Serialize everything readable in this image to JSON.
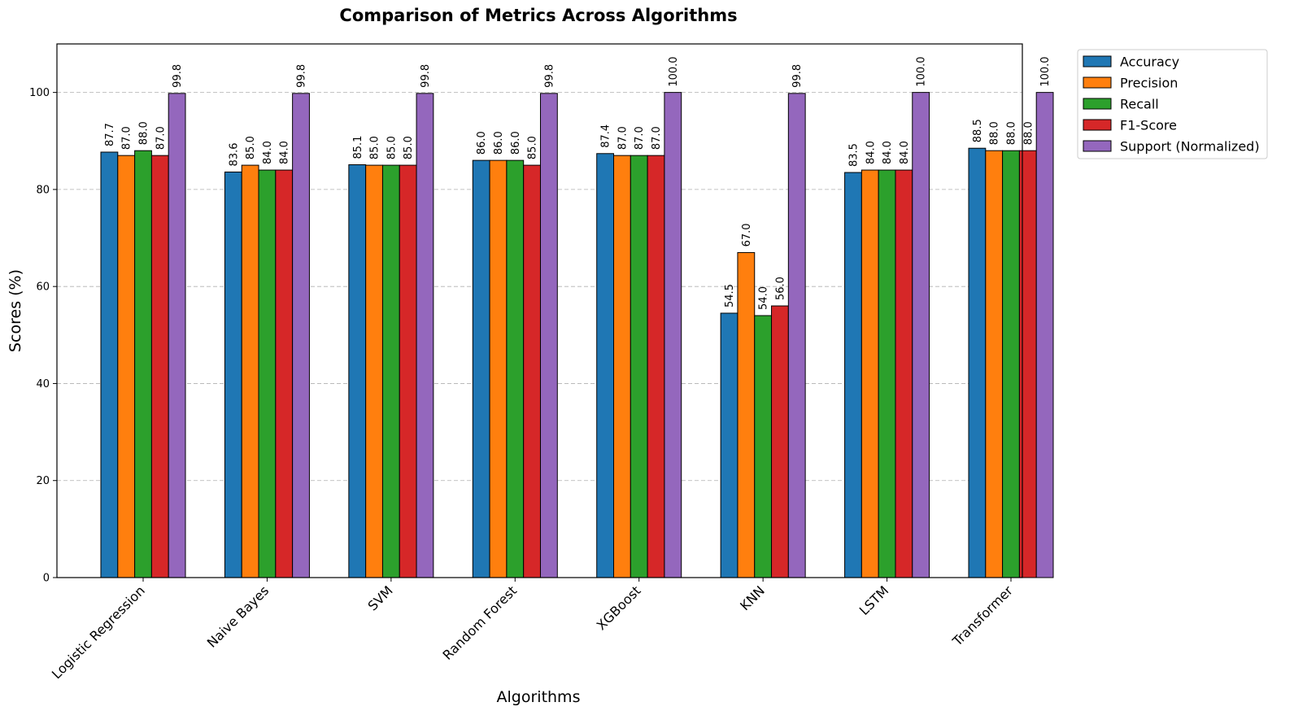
{
  "chart_data": {
    "type": "bar",
    "title": "Comparison of Metrics Across Algorithms",
    "xlabel": "Algorithms",
    "ylabel": "Scores (%)",
    "ylim": [
      0,
      110
    ],
    "yticks": [
      0,
      20,
      40,
      60,
      80,
      100
    ],
    "grid": "horizontal dashed",
    "legend_position": "outside-top-right",
    "categories": [
      "Logistic Regression",
      "Naive Bayes",
      "SVM",
      "Random Forest",
      "XGBoost",
      "KNN",
      "LSTM",
      "Transformer"
    ],
    "series": [
      {
        "name": "Accuracy",
        "color": "#1f77b4",
        "values": [
          87.7,
          83.6,
          85.1,
          86.0,
          87.4,
          54.5,
          83.5,
          88.5
        ],
        "labels": [
          "87.7",
          "83.6",
          "85.1",
          "86.0",
          "87.4",
          "54.5",
          "83.5",
          "88.5"
        ]
      },
      {
        "name": "Precision",
        "color": "#ff7f0e",
        "values": [
          87.0,
          85.0,
          85.0,
          86.0,
          87.0,
          67.0,
          84.0,
          88.0
        ],
        "labels": [
          "87.0",
          "85.0",
          "85.0",
          "86.0",
          "87.0",
          "67.0",
          "84.0",
          "88.0"
        ]
      },
      {
        "name": "Recall",
        "color": "#2ca02c",
        "values": [
          88.0,
          84.0,
          85.0,
          86.0,
          87.0,
          54.0,
          84.0,
          88.0
        ],
        "labels": [
          "88.0",
          "84.0",
          "85.0",
          "86.0",
          "87.0",
          "54.0",
          "84.0",
          "88.0"
        ]
      },
      {
        "name": "F1-Score",
        "color": "#d62728",
        "values": [
          87.0,
          84.0,
          85.0,
          85.0,
          87.0,
          56.0,
          84.0,
          88.0
        ],
        "labels": [
          "87.0",
          "84.0",
          "85.0",
          "85.0",
          "87.0",
          "56.0",
          "84.0",
          "88.0"
        ]
      },
      {
        "name": "Support (Normalized)",
        "color": "#9467bd",
        "values": [
          99.8,
          99.8,
          99.8,
          99.8,
          100.0,
          99.8,
          100.0,
          100.0
        ],
        "labels": [
          "99.8",
          "99.8",
          "99.8",
          "99.8",
          "100.0",
          "99.8",
          "100.0",
          "100.0"
        ]
      }
    ]
  }
}
